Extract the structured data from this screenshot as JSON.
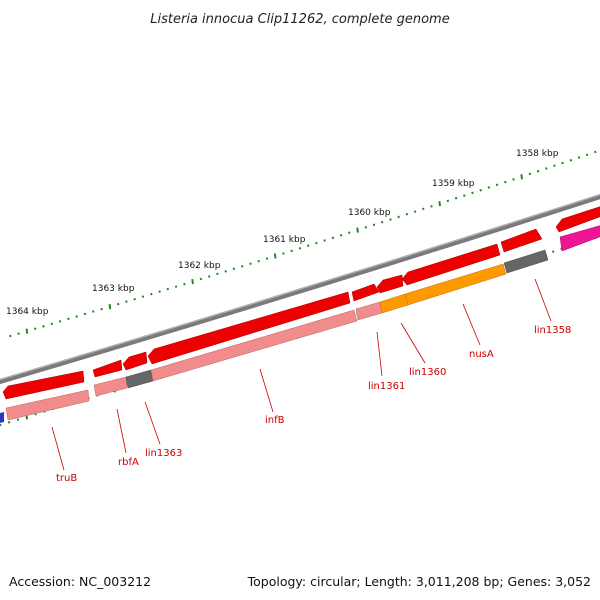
{
  "title": "Listeria innocua Clip11262, complete genome",
  "footer": {
    "accession": "Accession: NC_003212",
    "summary": "Topology: circular; Length: 3,011,208 bp; Genes: 3,052"
  },
  "scale_labels": [
    "1358 kbp",
    "1359 kbp",
    "1360 kbp",
    "1361 kbp",
    "1362 kbp",
    "1363 kbp",
    "1364 kbp"
  ],
  "genes": [
    "lin1358",
    "nusA",
    "lin1360",
    "lin1361",
    "infB",
    "lin1363",
    "rbfA",
    "truB"
  ],
  "colors": {
    "cds": "#ee0000",
    "gene_pale": "#f08c8c",
    "hypothetical": "#666666",
    "nusA_category": "#ff9900",
    "other_category": "#ee1493",
    "blue_category": "#3333cc",
    "tick": "#228b22",
    "backbone": "#808080",
    "label": "#cc0000"
  }
}
